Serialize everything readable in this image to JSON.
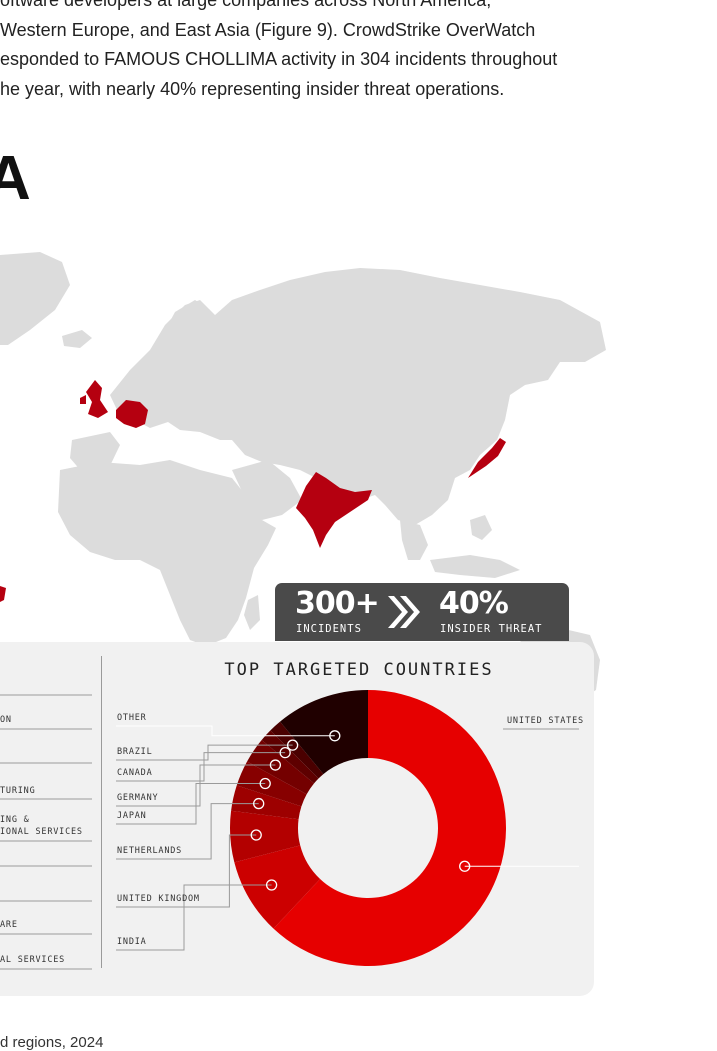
{
  "intro_lines": [
    "oftware developers at large companies across North America,",
    "Western Europe, and East Asia (Figure 9). CrowdStrike OverWatch",
    "esponded to FAMOUS CHOLLIMA activity in 304 incidents throughout",
    "he year, with nearly 40% representing insider threat operations."
  ],
  "heading_fragment": "A",
  "stats": {
    "incidents_value": "300+",
    "incidents_label": "INCIDENTS",
    "insider_value": "40%",
    "insider_label": "INSIDER THREAT",
    "chevron_icon": "double-chevron-right-icon"
  },
  "industry_labels": [
    "ON",
    "TURING",
    "ING &",
    "IONAL SERVICES",
    "ARE",
    "AL SERVICES"
  ],
  "footer_fragment": "d regions, 2024",
  "colors": {
    "map_land": "#dcdcdc",
    "highlight": "#b50010",
    "accent_red": "#e60000",
    "panel_bg": "#f1f1f1",
    "stat_box": "#4a4a4a"
  },
  "chart_data": {
    "type": "pie",
    "title": "TOP TARGETED COUNTRIES",
    "donut": true,
    "categories": [
      "UNITED STATES",
      "INDIA",
      "UNITED KINGDOM",
      "NETHERLANDS",
      "JAPAN",
      "GERMANY",
      "CANADA",
      "BRAZIL",
      "OTHER"
    ],
    "values": [
      62,
      9,
      6,
      3,
      3,
      3,
      1.5,
      1.5,
      11
    ],
    "colors": [
      "#e60000",
      "#cc0000",
      "#b30000",
      "#9d0000",
      "#870000",
      "#740000",
      "#5e0000",
      "#4a0000",
      "#200000"
    ],
    "legend_placement": "callout lines"
  }
}
